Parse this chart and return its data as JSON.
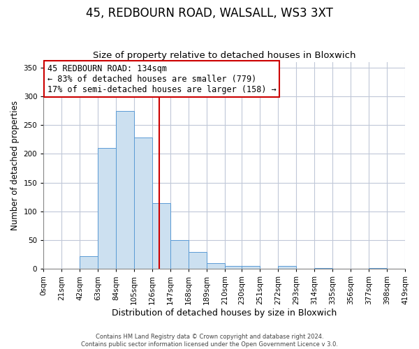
{
  "title": "45, REDBOURN ROAD, WALSALL, WS3 3XT",
  "subtitle": "Size of property relative to detached houses in Bloxwich",
  "xlabel": "Distribution of detached houses by size in Bloxwich",
  "ylabel": "Number of detached properties",
  "bin_labels": [
    "0sqm",
    "21sqm",
    "42sqm",
    "63sqm",
    "84sqm",
    "105sqm",
    "126sqm",
    "147sqm",
    "168sqm",
    "189sqm",
    "210sqm",
    "230sqm",
    "251sqm",
    "272sqm",
    "293sqm",
    "314sqm",
    "335sqm",
    "356sqm",
    "377sqm",
    "398sqm",
    "419sqm"
  ],
  "bin_edges": [
    0,
    21,
    42,
    63,
    84,
    105,
    126,
    147,
    168,
    189,
    210,
    230,
    251,
    272,
    293,
    314,
    335,
    356,
    377,
    398,
    419
  ],
  "bar_heights": [
    0,
    0,
    22,
    210,
    275,
    228,
    115,
    50,
    30,
    10,
    5,
    5,
    0,
    5,
    0,
    2,
    0,
    0,
    2,
    0,
    0
  ],
  "bar_color": "#cce0f0",
  "bar_edgecolor": "#5b9bd5",
  "vline_x": 134,
  "vline_color": "#cc0000",
  "annotation_title": "45 REDBOURN ROAD: 134sqm",
  "annotation_line1": "← 83% of detached houses are smaller (779)",
  "annotation_line2": "17% of semi-detached houses are larger (158) →",
  "annotation_box_edgecolor": "#cc0000",
  "annotation_box_facecolor": "#ffffff",
  "ylim": [
    0,
    360
  ],
  "yticks": [
    0,
    50,
    100,
    150,
    200,
    250,
    300,
    350
  ],
  "footer_line1": "Contains HM Land Registry data © Crown copyright and database right 2024.",
  "footer_line2": "Contains public sector information licensed under the Open Government Licence v 3.0.",
  "background_color": "#ffffff",
  "grid_color": "#c0c8d8",
  "title_fontsize": 12,
  "subtitle_fontsize": 9.5,
  "ylabel_fontsize": 8.5,
  "xlabel_fontsize": 9,
  "tick_fontsize": 7.5,
  "annotation_fontsize": 8.5
}
